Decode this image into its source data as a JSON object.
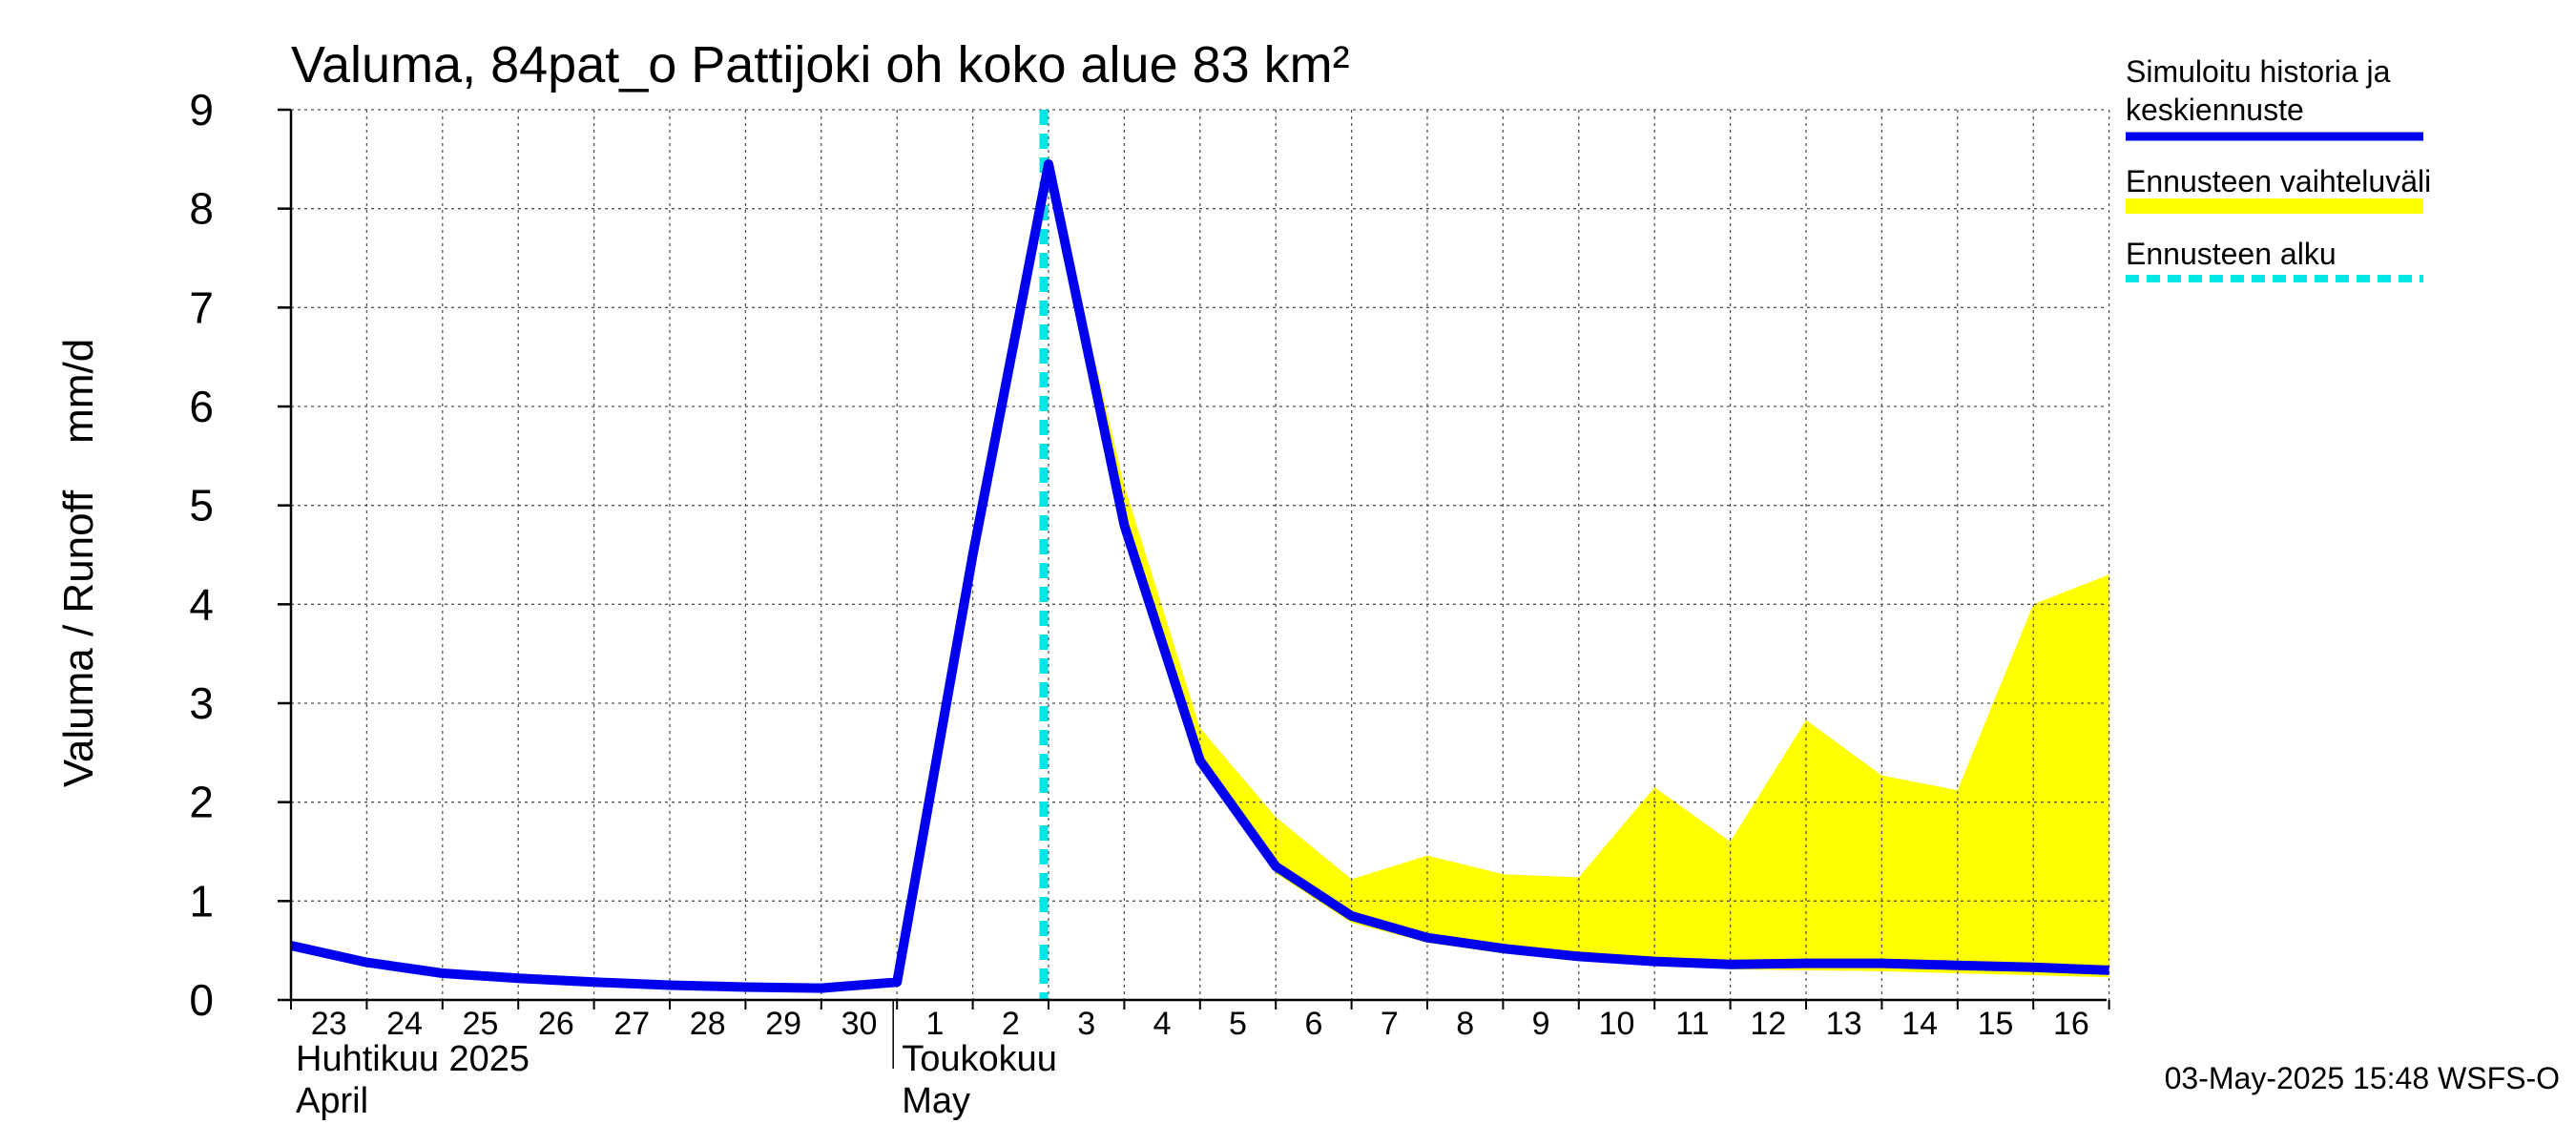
{
  "chart_data": {
    "type": "line",
    "title": "Valuma, 84pat_o Pattijoki oh koko alue 83 km²",
    "ylabel": "Valuma / Runoff    mm/d",
    "xlabel": "",
    "ylim": [
      0,
      9
    ],
    "y_ticks": [
      0,
      1,
      2,
      3,
      4,
      5,
      6,
      7,
      8,
      9
    ],
    "grid": true,
    "x_tick_labels": [
      "23",
      "24",
      "25",
      "26",
      "27",
      "28",
      "29",
      "30",
      "1",
      "2",
      "3",
      "4",
      "5",
      "6",
      "7",
      "8",
      "9",
      "10",
      "11",
      "12",
      "13",
      "14",
      "15",
      "16"
    ],
    "months": [
      {
        "line1": "Huhtikuu  2025",
        "line2": "April",
        "start_index": 0
      },
      {
        "line1": "Toukokuu",
        "line2": "May",
        "start_index": 8
      }
    ],
    "forecast_start_index": 10,
    "series": [
      {
        "name": "Simuloitu historia ja keskiennuste",
        "color": "#0000ee",
        "values": [
          0.55,
          0.38,
          0.27,
          0.22,
          0.18,
          0.15,
          0.13,
          0.12,
          0.18,
          4.5,
          8.45,
          4.8,
          2.42,
          1.35,
          0.85,
          0.63,
          0.52,
          0.44,
          0.39,
          0.36,
          0.37,
          0.37,
          0.35,
          0.33,
          0.3
        ]
      }
    ],
    "band": {
      "name": "Ennusteen vaihteluväli",
      "color": "#ffff00",
      "upper": [
        8.45,
        5.2,
        2.75,
        1.85,
        1.22,
        1.46,
        1.27,
        1.24,
        2.15,
        1.6,
        2.83,
        2.27,
        2.12,
        4.0,
        4.3
      ],
      "lower": [
        8.45,
        4.7,
        2.35,
        1.28,
        0.78,
        0.58,
        0.47,
        0.4,
        0.35,
        0.31,
        0.3,
        0.29,
        0.27,
        0.25,
        0.23
      ]
    },
    "legend": [
      {
        "line1": "Simuloitu historia ja",
        "line2": "keskiennuste",
        "color": "#0000ee",
        "style": "solid"
      },
      {
        "line1": "Ennusteen vaihteluväli",
        "line2": "",
        "color": "#ffff00",
        "style": "band"
      },
      {
        "line1": "Ennusteen alku",
        "line2": "",
        "color": "#00e5e5",
        "style": "dashed"
      }
    ],
    "legend_position": "right",
    "timestamp": "03-May-2025 15:48 WSFS-O"
  }
}
